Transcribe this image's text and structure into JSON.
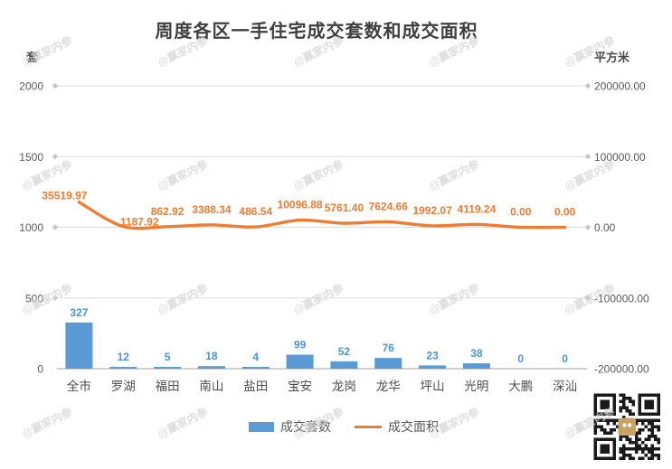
{
  "title": "周度各区一手住宅成交套数和成交面积",
  "watermark_text": "@赢家内参",
  "chart_data": {
    "type": "combo_bar_line",
    "title": "周度各区一手住宅成交套数和成交面积",
    "categories": [
      "全市",
      "罗湖",
      "福田",
      "南山",
      "盐田",
      "宝安",
      "龙岗",
      "龙华",
      "坪山",
      "光明",
      "大鹏",
      "深汕"
    ],
    "series": [
      {
        "name": "成交套数",
        "type": "bar",
        "axis": "left",
        "color": "#5B9BD5",
        "label_color": "#4A94DB",
        "values": [
          327,
          12,
          5,
          18,
          4,
          99,
          52,
          76,
          23,
          38,
          0,
          0
        ],
        "labels": [
          "327",
          "12",
          "5",
          "18",
          "4",
          "99",
          "52",
          "76",
          "23",
          "38",
          "0",
          "0"
        ]
      },
      {
        "name": "成交面积",
        "type": "line",
        "axis": "right",
        "color": "#ED7D31",
        "label_color": "#ED7D31",
        "values": [
          35519.97,
          1187.92,
          862.92,
          3388.34,
          486.54,
          10096.88,
          5761.4,
          7624.66,
          1992.07,
          4119.24,
          0.0,
          0.0
        ],
        "labels": [
          "35519.97",
          "1187.92",
          "862.92",
          "3388.34",
          "486.54",
          "10096.88",
          "5761.40",
          "7624.66",
          "1992.07",
          "4119.24",
          "0.00",
          "0.00"
        ]
      }
    ],
    "left_axis": {
      "title": "套",
      "min": 0,
      "max": 2000,
      "ticks": [
        "2000",
        "1500",
        "1000",
        "500",
        "0"
      ]
    },
    "right_axis": {
      "title": "平方米",
      "min": -200000,
      "max": 200000,
      "ticks": [
        "200000.00",
        "100000.00",
        "0.00",
        "-100000.00",
        "-200000.00"
      ]
    },
    "legend": {
      "position": "bottom",
      "entries": [
        "成交套数",
        "成交面积"
      ]
    },
    "grid": true,
    "grid_color": "#DDDDDD",
    "baseline_color": "#B5B5B5",
    "tick_text_color": "#595959",
    "category_text_color": "#4D4D4D"
  },
  "icons": {
    "qr_code": "qr-code"
  }
}
